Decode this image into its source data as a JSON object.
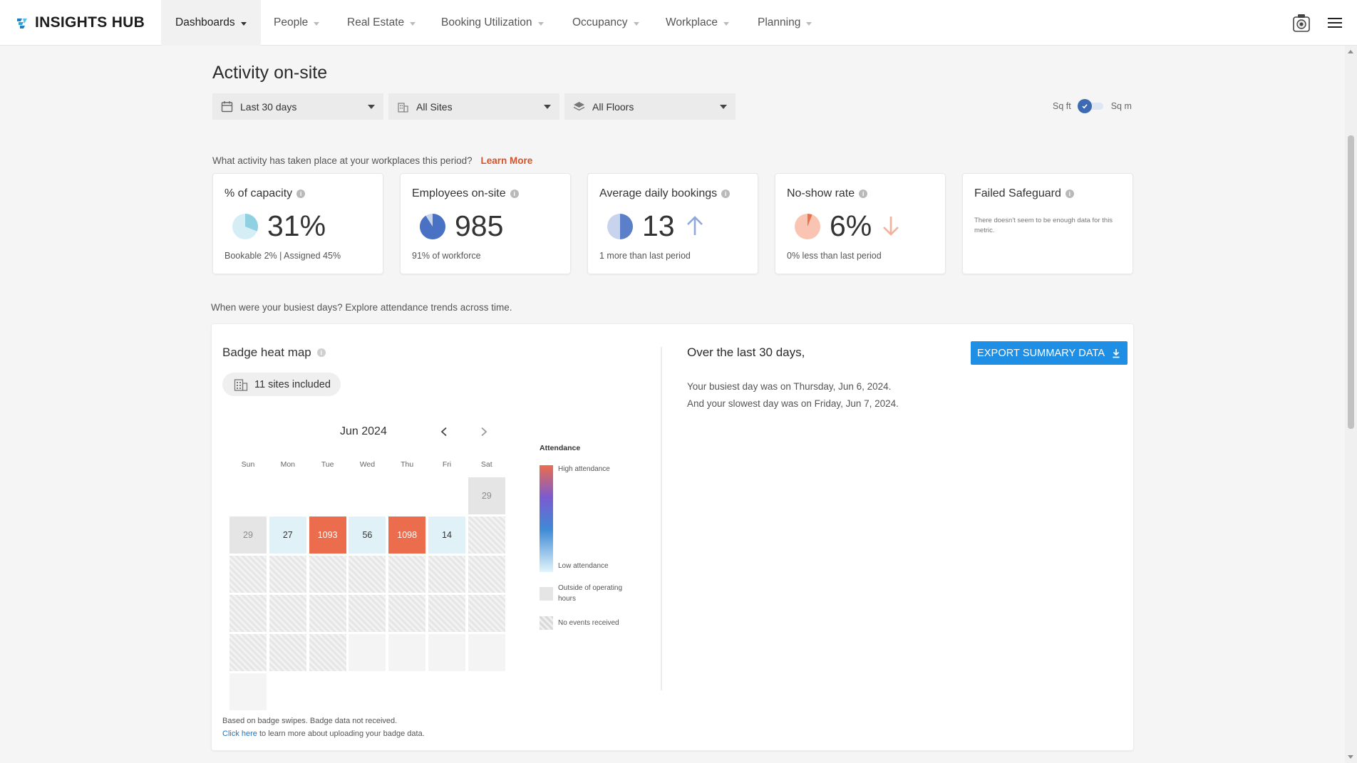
{
  "app": {
    "title": "INSIGHTS HUB"
  },
  "nav": [
    {
      "label": "Dashboards",
      "active": true
    },
    {
      "label": "People"
    },
    {
      "label": "Real Estate"
    },
    {
      "label": "Booking Utilization"
    },
    {
      "label": "Occupancy"
    },
    {
      "label": "Workplace"
    },
    {
      "label": "Planning"
    }
  ],
  "page": {
    "title": "Activity on-site"
  },
  "filters": {
    "period": "Last 30 days",
    "sites": "All Sites",
    "floors": "All Floors"
  },
  "units": {
    "left": "Sq ft",
    "right": "Sq m",
    "selected": "Sq ft"
  },
  "activity_prompt": {
    "text": "What activity has taken place at your workplaces this period?",
    "link": "Learn More"
  },
  "metrics": [
    {
      "title": "% of capacity",
      "value": "31%",
      "sub": "Bookable 2% | Assigned 45%",
      "pie_fraction": 0.31,
      "pie_color": "#8fd0e3",
      "pie_bg": "#d5eef6"
    },
    {
      "title": "Employees on-site",
      "value": "985",
      "sub": "91% of workforce",
      "pie_fraction": 0.91,
      "pie_color": "#4a72c4",
      "pie_bg": "#c7d5ee"
    },
    {
      "title": "Average daily bookings",
      "value": "13",
      "sub": "1 more than last period",
      "trend": "up",
      "pie_fraction": 0.5,
      "pie_color": "#5b7fc9",
      "pie_bg": "#c8d4ee"
    },
    {
      "title": "No-show rate",
      "value": "6%",
      "sub": "0% less than last period",
      "trend": "down",
      "pie_fraction": 0.06,
      "pie_color": "#e8724e",
      "pie_bg": "#f9c4b1"
    },
    {
      "title": "Failed Safeguard",
      "nodata": "There doesn't seem to be enough data for this metric."
    }
  ],
  "busiest_prompt": "When were your busiest days? Explore attendance trends across time.",
  "heatmap": {
    "title": "Badge heat map",
    "chip": "11 sites included",
    "month": "Jun 2024",
    "weekdays": [
      "Sun",
      "Mon",
      "Tue",
      "Wed",
      "Thu",
      "Fri",
      "Sat"
    ],
    "weeks": [
      [
        null,
        null,
        null,
        null,
        null,
        null,
        {
          "v": "29",
          "t": "outside"
        }
      ],
      [
        {
          "v": "29",
          "t": "outside"
        },
        {
          "v": "27",
          "t": "low"
        },
        {
          "v": "1093",
          "t": "high"
        },
        {
          "v": "56",
          "t": "low"
        },
        {
          "v": "1098",
          "t": "high"
        },
        {
          "v": "14",
          "t": "low"
        },
        {
          "t": "noevents"
        }
      ],
      [
        {
          "t": "noevents"
        },
        {
          "t": "noevents"
        },
        {
          "t": "noevents"
        },
        {
          "t": "noevents"
        },
        {
          "t": "noevents"
        },
        {
          "t": "noevents"
        },
        {
          "t": "noevents"
        }
      ],
      [
        {
          "t": "noevents"
        },
        {
          "t": "noevents"
        },
        {
          "t": "noevents"
        },
        {
          "t": "noevents"
        },
        {
          "t": "noevents"
        },
        {
          "t": "noevents"
        },
        {
          "t": "noevents"
        }
      ],
      [
        {
          "t": "noevents"
        },
        {
          "t": "noevents"
        },
        {
          "t": "noevents"
        },
        {
          "t": "blank"
        },
        {
          "t": "blank"
        },
        {
          "t": "blank"
        },
        {
          "t": "blank"
        }
      ],
      [
        {
          "t": "blank"
        },
        null,
        null,
        null,
        null,
        null,
        null
      ]
    ],
    "legend": {
      "title": "Attendance",
      "high": "High attendance",
      "low": "Low attendance",
      "outside": "Outside of operating hours",
      "no_events": "No events received"
    },
    "footnote": "Based on badge swipes. Badge data not received.",
    "footnote_link": "Click here",
    "footnote_rest": "to learn more about uploading your badge data."
  },
  "summary": {
    "title": "Over the last 30 days,",
    "export": "EXPORT SUMMARY DATA",
    "busiest": "Your busiest day was on Thursday, Jun 6, 2024.",
    "slowest": "And your slowest day was on Friday, Jun 7, 2024."
  },
  "colors": {
    "accent": "#d4532b",
    "primary_button": "#1f8fe5",
    "high_attendance": "#ec6d4d",
    "low_attendance": "#e0f1f7",
    "outside_hours": "#e5e5e5"
  }
}
